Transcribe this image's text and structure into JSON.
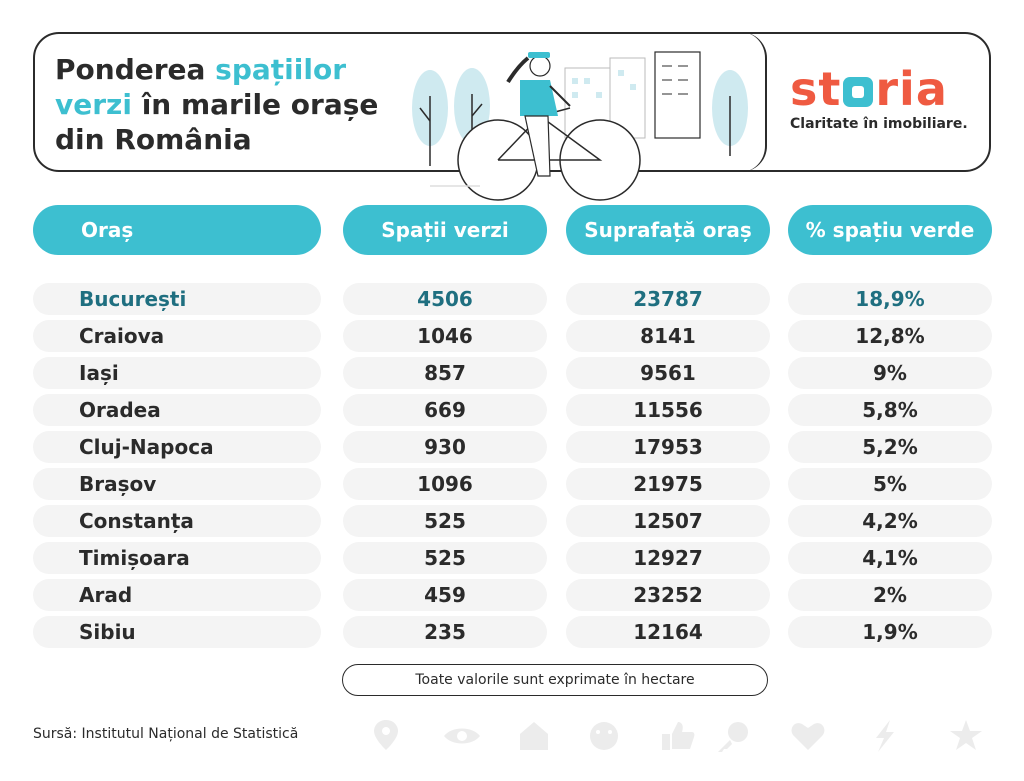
{
  "header": {
    "title_part1": "Ponderea ",
    "title_accent1": "spațiilor",
    "title_accent2": "verzi",
    "title_part2": " în marile orașe",
    "title_part3": "din România"
  },
  "logo": {
    "word_before": "st",
    "word_after": "ria",
    "tagline": "Claritate în imobiliare."
  },
  "chart_data": {
    "type": "table",
    "columns": [
      "Oraș",
      "Spații verzi",
      "Suprafață oraș",
      "% spațiu verde"
    ],
    "rows": [
      {
        "city": "București",
        "green": "4506",
        "area": "23787",
        "pct": "18,9%"
      },
      {
        "city": "Craiova",
        "green": "1046",
        "area": "8141",
        "pct": "12,8%"
      },
      {
        "city": "Iași",
        "green": "857",
        "area": "9561",
        "pct": "9%"
      },
      {
        "city": "Oradea",
        "green": "669",
        "area": "11556",
        "pct": "5,8%"
      },
      {
        "city": "Cluj-Napoca",
        "green": "930",
        "area": "17953",
        "pct": "5,2%"
      },
      {
        "city": "Brașov",
        "green": "1096",
        "area": "21975",
        "pct": "5%"
      },
      {
        "city": "Constanța",
        "green": "525",
        "area": "12507",
        "pct": "4,2%"
      },
      {
        "city": "Timișoara",
        "green": "525",
        "area": "12927",
        "pct": "4,1%"
      },
      {
        "city": "Arad",
        "green": "459",
        "area": "23252",
        "pct": "2%"
      },
      {
        "city": "Sibiu",
        "green": "235",
        "area": "12164",
        "pct": "1,9%"
      }
    ]
  },
  "note": "Toate valorile sunt exprimate în hectare",
  "source": "Sursă: Institutul Național de Statistică",
  "colors": {
    "accent": "#3dbfd0",
    "brand": "#ef5a41",
    "highlight_text": "#1f6f80",
    "row_bg": "#f4f4f4"
  },
  "icons": [
    "pin-icon",
    "eye-icon",
    "house-icon",
    "smiley-icon",
    "thumbs-up-icon",
    "key-icon",
    "heart-icon",
    "lightning-icon",
    "star-icon"
  ]
}
